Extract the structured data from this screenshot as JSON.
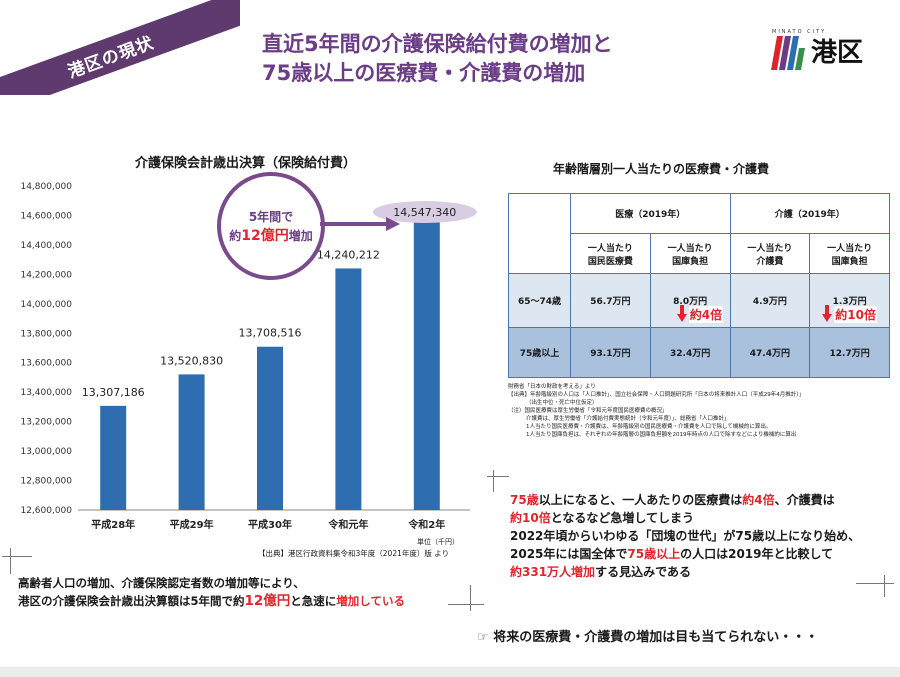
{
  "header": {
    "ribbon_label": "港区の現状",
    "title_line1": "直近5年間の介護保険給付費の増加と",
    "title_line2": "75歳以上の医療費・介護費の増加",
    "logo_small": "MINATO CITY",
    "logo_name": "港区"
  },
  "colors": {
    "accent_purple": "#6b3d86",
    "bar_blue": "#2e6db0",
    "highlight_red": "#e0262b",
    "table_light": "#dce7f2",
    "table_dark": "#a9c1dd"
  },
  "chart_data": {
    "type": "bar",
    "title": "介護保険会計歳出決算（保険給付費）",
    "categories": [
      "平成28年",
      "平成29年",
      "平成30年",
      "令和元年",
      "令和2年"
    ],
    "values": [
      13307186,
      13520830,
      13708516,
      14240212,
      14547340
    ],
    "value_labels": [
      "13,307,186",
      "13,520,830",
      "13,708,516",
      "14,240,212",
      "14,547,340"
    ],
    "ylim": [
      12600000,
      14800000
    ],
    "yticks": [
      12600000,
      12800000,
      13000000,
      13200000,
      13400000,
      13600000,
      13800000,
      14000000,
      14200000,
      14400000,
      14600000,
      14800000
    ],
    "ytick_labels": [
      "12,600,000",
      "12,800,000",
      "13,000,000",
      "13,200,000",
      "13,400,000",
      "13,600,000",
      "13,800,000",
      "14,000,000",
      "14,200,000",
      "14,400,000",
      "14,600,000",
      "14,800,000"
    ],
    "unit": "単位（千円）",
    "source": "【出典】港区行政資料集令和3年度（2021年度）版 より",
    "callout_line1": "5年間で",
    "callout_prefix": "約",
    "callout_amount": "12億円",
    "callout_suffix": "増加"
  },
  "table": {
    "title": "年齢階層別一人当たりの医療費・介護費",
    "group_medical": "医療（2019年）",
    "group_care": "介護（2019年）",
    "col_med_per_person_1": "一人当たり",
    "col_med_per_person_2": "国民医療費",
    "col_med_treasury_1": "一人当たり",
    "col_med_treasury_2": "国庫負担",
    "col_care_per_person_1": "一人当たり",
    "col_care_per_person_2": "介護費",
    "col_care_treasury_1": "一人当たり",
    "col_care_treasury_2": "国庫負担",
    "rows": [
      {
        "age": "65～74歳",
        "med_per_person": "56.7万円",
        "med_treasury": "8.0万円",
        "care_per_person": "4.9万円",
        "care_treasury": "1.3万円"
      },
      {
        "age": "75歳以上",
        "med_per_person": "93.1万円",
        "med_treasury": "32.4万円",
        "care_per_person": "47.4万円",
        "care_treasury": "12.7万円"
      }
    ],
    "ratio_medical": "約4倍",
    "ratio_care": "約10倍"
  },
  "notes": [
    "財務省「日本の財政を考える」より",
    "【出典】年齢階級別の人口は「人口推計」、国立社会保障・人口問題研究所「日本の将来推計人口（平成29年4月推計）」",
    "（出生中位・死亡中位仮定）",
    "（注）国民医療費は厚生労働省「令和元年度国民医療費の概況」",
    "介護費は、厚生労働省「介護給付費実態統計（令和元年度）」、総務省「人口推計」",
    "1人当たり国民医療費・介護費は、年齢階級別の国民医療費・介護費を人口で除して機械的に算出。",
    "1人当たり国庫負担は、それぞれの年齢階層の国庫負担額を2019年時点の人口で除すなどにより機械的に算出"
  ],
  "right_box": {
    "l1_a": "75歳",
    "l1_b": "以上になると、一人あたりの医療費は",
    "l1_c": "約4倍",
    "l1_d": "、介護費は",
    "l2_a": "約",
    "l2_b": "10倍",
    "l2_c": "となるなど急増してしまう",
    "l3": "2022年頃からいわゆる「団塊の世代」が75歳以上になり始め、",
    "l4_a": "2025年には国全体で",
    "l4_b": "75歳以上",
    "l4_c": "の人口は2019年と比較して",
    "l5_a": "約331万人増加",
    "l5_b": "する見込みである"
  },
  "left_box": {
    "l1": "高齢者人口の増加、介護保険認定者数の増加等により、",
    "l2_a": "港区の介護保険会計歳出決算額は5年間で約",
    "l2_b": "12億円",
    "l2_c": "と急速に",
    "l2_d": "増加している"
  },
  "bottom": {
    "icon_name": "pointing-hand-icon",
    "text": "将来の医療費・介護費の増加は目も当てられない・・・"
  }
}
